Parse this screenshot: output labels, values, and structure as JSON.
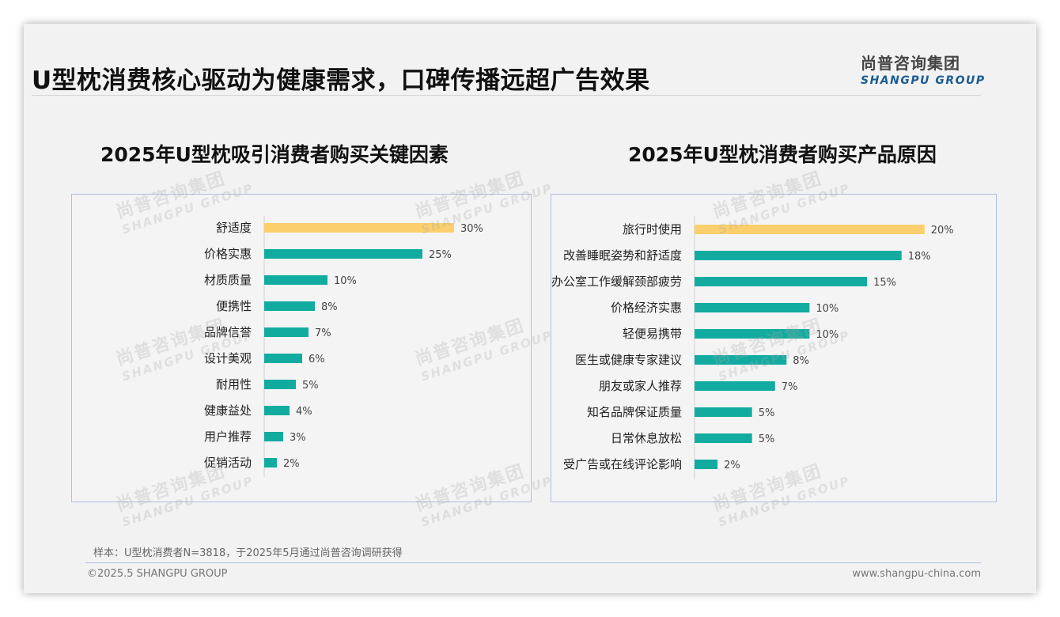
{
  "header": {
    "title": "U型枕消费核心驱动为健康需求，口碑传播远超广告效果",
    "logo_cn": "尚普咨询集团",
    "logo_en": "SHANGPU GROUP"
  },
  "watermark": {
    "cn": "尚普咨询集团",
    "en": "SHANGPU GROUP"
  },
  "colors": {
    "highlight": "#fbcf6b",
    "bar": "#12aba0",
    "panel_border": "#aebfdc"
  },
  "chart_data": [
    {
      "type": "bar",
      "orientation": "horizontal",
      "title": "2025年U型枕吸引消费者购买关键因素",
      "categories": [
        "舒适度",
        "价格实惠",
        "材质质量",
        "便携性",
        "品牌信誉",
        "设计美观",
        "耐用性",
        "健康益处",
        "用户推荐",
        "促销活动"
      ],
      "values": [
        30,
        25,
        10,
        8,
        7,
        6,
        5,
        4,
        3,
        2
      ],
      "value_labels": [
        "30%",
        "25%",
        "10%",
        "8%",
        "7%",
        "6%",
        "5%",
        "4%",
        "3%",
        "2%"
      ],
      "unit": "%",
      "highlight_index": 0,
      "xlim": [
        0,
        60
      ]
    },
    {
      "type": "bar",
      "orientation": "horizontal",
      "title": "2025年U型枕消费者购买产品原因",
      "categories": [
        "旅行时使用",
        "改善睡眠姿势和舒适度",
        "办公室工作缓解颈部疲劳",
        "价格经济实惠",
        "轻便易携带",
        "医生或健康专家建议",
        "朋友或家人推荐",
        "知名品牌保证质量",
        "日常休息放松",
        "受广告或在线评论影响"
      ],
      "values": [
        20,
        18,
        15,
        10,
        10,
        8,
        7,
        5,
        5,
        2
      ],
      "value_labels": [
        "20%",
        "18%",
        "15%",
        "10%",
        "10%",
        "8%",
        "7%",
        "5%",
        "5%",
        "2%"
      ],
      "unit": "%",
      "highlight_index": 0,
      "xlim": [
        0,
        26
      ]
    }
  ],
  "footer": {
    "sample": "样本：U型枕消费者N=3818，于2025年5月通过尚普咨询调研获得",
    "copyright": "©2025.5 SHANGPU GROUP",
    "website": "www.shangpu-china.com"
  }
}
